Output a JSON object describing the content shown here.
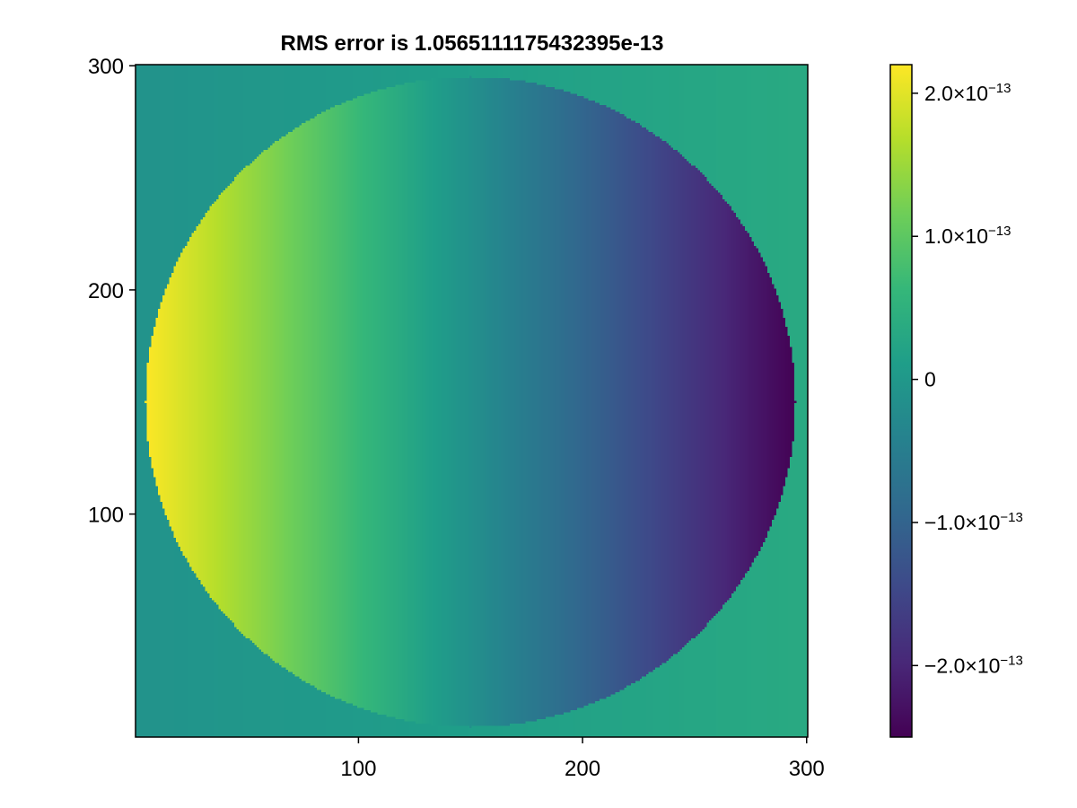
{
  "chart_data": {
    "type": "heatmap",
    "title": "RMS error is 1.0565111175432395e-13",
    "colormap": "viridis",
    "colormap_stops": [
      "#440154",
      "#482878",
      "#3e4989",
      "#31688e",
      "#26828e",
      "#1f9e89",
      "#35b779",
      "#6ece58",
      "#b5de2b",
      "#fde725"
    ],
    "xlim": [
      1,
      300
    ],
    "ylim": [
      1,
      300
    ],
    "x_ticks": [
      100,
      200,
      300
    ],
    "y_ticks": [
      100,
      200,
      300
    ],
    "x_tick_labels": [
      "100",
      "200",
      "300"
    ],
    "y_tick_labels": [
      "100",
      "200",
      "300"
    ],
    "grid": false,
    "field": {
      "description_of_values": "error field over a 300x300 grid; inside the disk the value varies linearly along x, outside the disk values are near zero",
      "disk_center": [
        150,
        150
      ],
      "disk_radius": 145,
      "value_at_left_edge_of_disk": 2.2e-13,
      "value_at_right_edge_of_disk": -2.5e-13,
      "outside_disk_value_left_half": -1e-14,
      "outside_disk_value_right_half": 3.5e-14
    },
    "colorbar": {
      "vmin": -2.5e-13,
      "vmax": 2.2e-13,
      "ticks": [
        {
          "value": 2e-13,
          "mantissa": "2.0×10",
          "exponent": "−13"
        },
        {
          "value": 1e-13,
          "mantissa": "1.0×10",
          "exponent": "−13"
        },
        {
          "value": 0,
          "mantissa": "0",
          "exponent": ""
        },
        {
          "value": -1e-13,
          "mantissa": "−1.0×10",
          "exponent": "−13"
        },
        {
          "value": -2e-13,
          "mantissa": "−2.0×10",
          "exponent": "−13"
        }
      ]
    }
  }
}
